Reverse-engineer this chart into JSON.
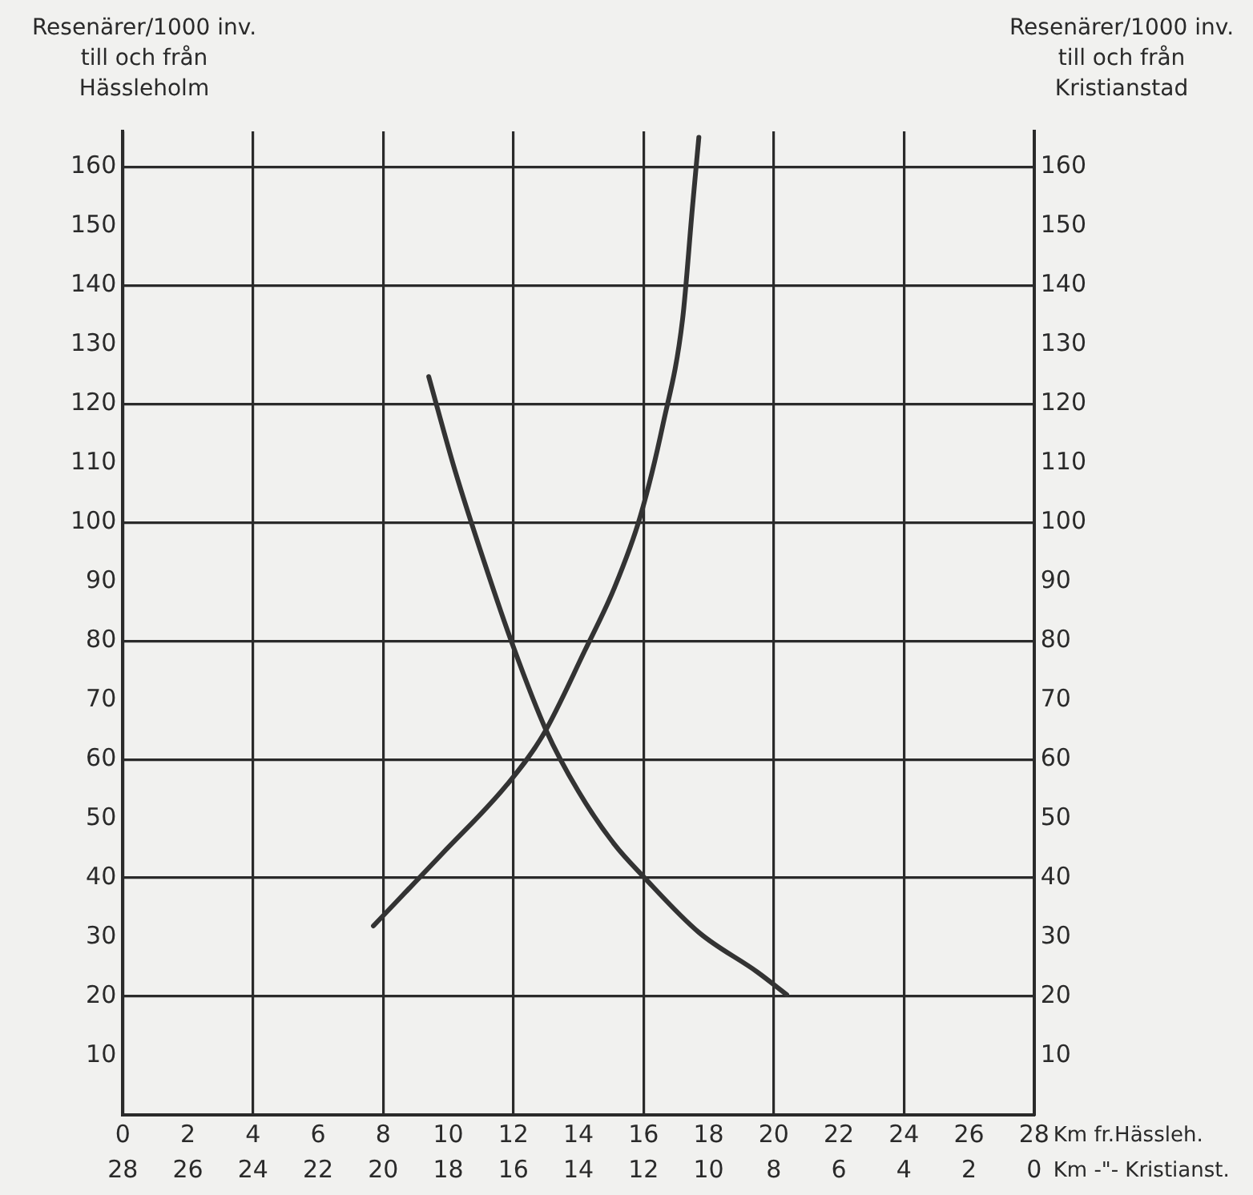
{
  "chart_data": {
    "type": "line",
    "ylabel": "Resenärer/1000 inv.\ntill och från\nHässleholm",
    "y2label": "Resenärer/1000 inv.\ntill och från\nKristianstad",
    "xlabel": "Km fr.Hässleh.",
    "x2label": "Km -\"- Kristianst.",
    "xlim": [
      0,
      28
    ],
    "xticks": [
      0,
      2,
      4,
      6,
      8,
      10,
      12,
      14,
      16,
      18,
      20,
      22,
      24,
      26,
      28
    ],
    "x2lim": [
      28,
      0
    ],
    "x2ticks": [
      28,
      26,
      24,
      22,
      20,
      18,
      16,
      14,
      12,
      10,
      8,
      6,
      4,
      2,
      0
    ],
    "ylim": [
      0,
      166
    ],
    "yticks": [
      10,
      20,
      30,
      40,
      50,
      60,
      70,
      80,
      90,
      100,
      110,
      120,
      130,
      140,
      150,
      160
    ],
    "y2lim": [
      0,
      166
    ],
    "y2ticks": [
      10,
      20,
      30,
      40,
      50,
      60,
      70,
      80,
      90,
      100,
      110,
      120,
      130,
      140,
      150,
      160
    ],
    "grid": true,
    "legend": false,
    "marker": "none",
    "line_style": "solid",
    "series": [
      {
        "color": "#333333",
        "x": [
          9.4,
          10.2,
          11.1,
          12.0,
          13.0,
          14.0,
          15.1,
          16.0,
          17.7,
          19.5,
          20.4
        ],
        "values": [
          124.6,
          108.9,
          93.4,
          79,
          65,
          54.6,
          45.7,
          40.2,
          30.8,
          24.1,
          20.3
        ]
      },
      {
        "color": "#333333",
        "x": [
          7.7,
          9.8,
          11.8,
          12.9,
          14.2,
          15.1,
          15.9,
          16.6,
          17.2,
          17.5,
          17.7
        ],
        "values": [
          31.9,
          44,
          55.7,
          64,
          78.4,
          88.9,
          101,
          116.6,
          134.3,
          153,
          165
        ]
      }
    ]
  }
}
